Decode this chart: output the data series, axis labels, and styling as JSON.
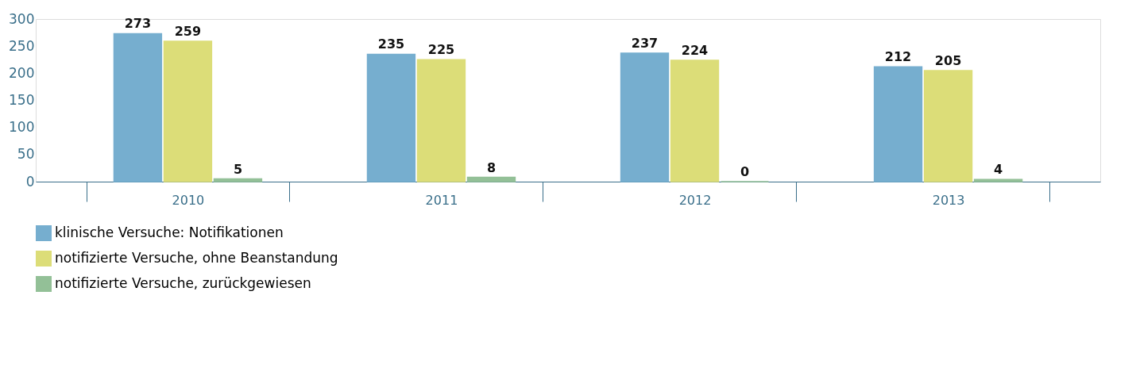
{
  "chart_data": {
    "type": "bar",
    "categories": [
      "2010",
      "2011",
      "2012",
      "2013"
    ],
    "series": [
      {
        "name": "klinische Versuche: Notifikationen",
        "color": "#76aecf",
        "values": [
          273,
          235,
          237,
          212
        ]
      },
      {
        "name": "notifizierte Versuche, ohne Beanstandung",
        "color": "#dcdd78",
        "values": [
          259,
          225,
          224,
          205
        ]
      },
      {
        "name": "notifizierte Versuche, zurückgewiesen",
        "color": "#93c097",
        "values": [
          5,
          8,
          0,
          4
        ]
      }
    ],
    "ylim": [
      0,
      300
    ],
    "yticks": [
      0,
      50,
      100,
      150,
      200,
      250,
      300
    ],
    "grid": false,
    "legend": "bottom left",
    "data_labels": true
  }
}
